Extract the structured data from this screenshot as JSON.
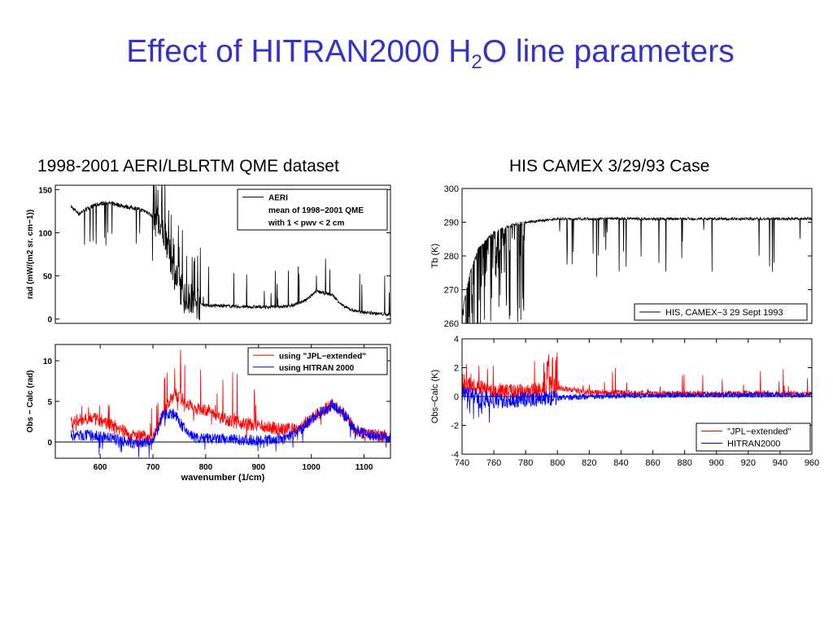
{
  "slide": {
    "title_main": "Effect of HITRAN2000 H",
    "title_sub": "2",
    "title_end": "O line parameters",
    "left_heading": "1998-2001 AERI/LBLRTM QME dataset",
    "right_heading": "HIS CAMEX 3/29/93 Case"
  },
  "colors": {
    "title": "#3333cc",
    "red": "#ff0000",
    "blue": "#0000ff",
    "black": "#000000"
  },
  "chart_data": [
    {
      "id": "aeri-radiance",
      "type": "line",
      "ylabel": "rad (mW/(m2 sr. cm−1))",
      "xlim": [
        515,
        1150
      ],
      "ylim": [
        -5,
        155
      ],
      "yticks": [
        0,
        50,
        100,
        150
      ],
      "xticks": [],
      "legend": {
        "placement": "top-right",
        "entries": [
          "AERI",
          "mean of 1998−2001 QME",
          "with 1 < pwv < 2 cm"
        ]
      },
      "series": [
        {
          "name": "AERI",
          "x": [
            545,
            560,
            575,
            590,
            610,
            630,
            650,
            670,
            690,
            700,
            720,
            740,
            760,
            780,
            800,
            840,
            880,
            920,
            960,
            990,
            1010,
            1040,
            1060,
            1080,
            1100,
            1130,
            1150
          ],
          "y": [
            130,
            122,
            128,
            132,
            135,
            133,
            130,
            128,
            124,
            118,
            100,
            55,
            25,
            20,
            16,
            15,
            14,
            14,
            15,
            22,
            32,
            28,
            15,
            10,
            8,
            6,
            5
          ]
        }
      ]
    },
    {
      "id": "aeri-residual",
      "type": "line",
      "xlabel": "wavenumber (1/cm)",
      "ylabel": "Obs − Calc (rad)",
      "xlim": [
        515,
        1150
      ],
      "ylim": [
        -2,
        12
      ],
      "yticks": [
        0,
        5,
        10
      ],
      "xticks": [
        600,
        700,
        800,
        900,
        1000,
        1100
      ],
      "legend": {
        "placement": "top-right",
        "entries": [
          "using \"JPL−extended\"",
          "using HITRAN 2000"
        ]
      },
      "series": [
        {
          "name": "using \"JPL−extended\"",
          "x": [
            545,
            580,
            620,
            660,
            700,
            720,
            740,
            760,
            780,
            800,
            850,
            900,
            950,
            980,
            1000,
            1020,
            1040,
            1060,
            1080,
            1100,
            1150
          ],
          "y": [
            2.5,
            3.0,
            2.2,
            0.8,
            0.6,
            3.5,
            6.0,
            5.0,
            4.0,
            4.0,
            2.5,
            2.0,
            1.5,
            1.8,
            2.8,
            3.8,
            4.6,
            3.6,
            1.8,
            1.0,
            0.6
          ]
        },
        {
          "name": "using HITRAN 2000",
          "x": [
            545,
            580,
            620,
            660,
            700,
            720,
            740,
            760,
            780,
            800,
            850,
            900,
            950,
            980,
            1000,
            1020,
            1040,
            1060,
            1080,
            1100,
            1150
          ],
          "y": [
            0.8,
            0.8,
            0.5,
            -0.2,
            0.0,
            3.5,
            3.5,
            1.5,
            0.5,
            0.4,
            0.3,
            0.2,
            0.4,
            1.5,
            2.8,
            3.8,
            4.6,
            3.6,
            1.8,
            1.0,
            0.5
          ]
        }
      ]
    },
    {
      "id": "his-tb",
      "type": "line",
      "ylabel": "Tb (K)",
      "xlim": [
        740,
        960
      ],
      "ylim": [
        260,
        300
      ],
      "yticks": [
        260,
        270,
        280,
        290,
        300
      ],
      "xticks": [],
      "legend": {
        "placement": "bottom-right",
        "entries": [
          "HIS, CAMEX−3 29 Sept 1993"
        ]
      },
      "series": [
        {
          "name": "HIS, CAMEX−3 29 Sept 1993",
          "x": [
            740,
            745,
            750,
            760,
            770,
            780,
            790,
            800,
            820,
            840,
            860,
            880,
            900,
            920,
            940,
            960
          ],
          "y": [
            263,
            275,
            282,
            287,
            289,
            290,
            290.5,
            291,
            291,
            291,
            291,
            291,
            291,
            291,
            291,
            291
          ]
        }
      ]
    },
    {
      "id": "his-residual",
      "type": "line",
      "ylabel": "Obs−Calc (K)",
      "xlim": [
        740,
        960
      ],
      "ylim": [
        -4,
        4
      ],
      "yticks": [
        -4,
        -2,
        0,
        2,
        4
      ],
      "xticks": [
        740,
        760,
        780,
        800,
        820,
        840,
        860,
        880,
        900,
        920,
        940,
        960
      ],
      "legend": {
        "placement": "bottom-right",
        "entries": [
          "\"JPL−extended\"",
          "HITRAN2000"
        ]
      },
      "series": [
        {
          "name": "\"JPL−extended\"",
          "x": [
            740,
            760,
            780,
            800,
            820,
            860,
            900,
            960
          ],
          "y": [
            0.8,
            0.4,
            0.3,
            0.6,
            0.3,
            0.2,
            0.2,
            0.2
          ]
        },
        {
          "name": "HITRAN2000",
          "x": [
            740,
            760,
            780,
            800,
            820,
            860,
            900,
            960
          ],
          "y": [
            0.3,
            -0.3,
            -0.2,
            -0.1,
            0.0,
            0.1,
            0.1,
            0.1
          ]
        }
      ]
    }
  ]
}
